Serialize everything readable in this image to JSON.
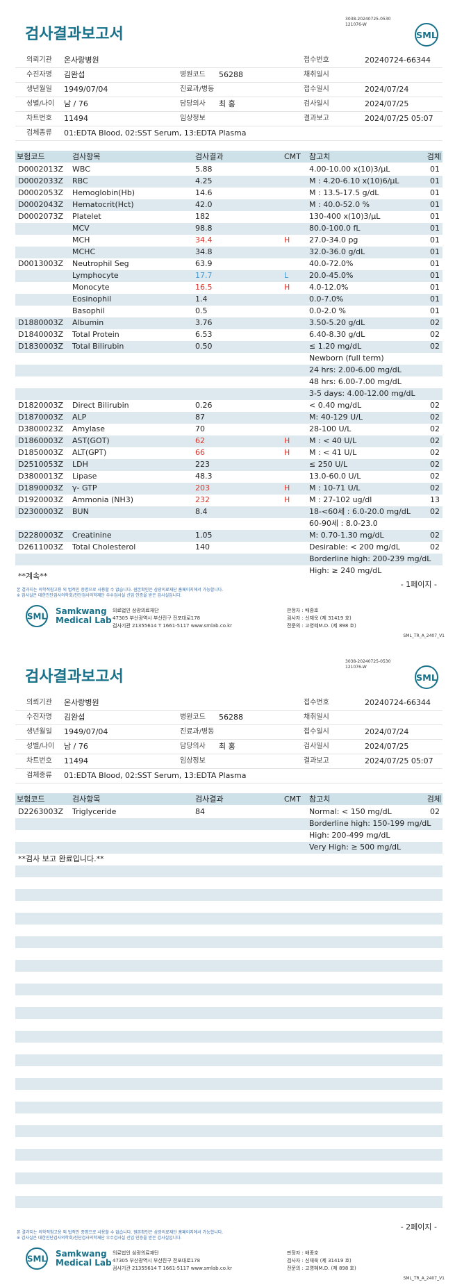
{
  "pages": [
    {
      "header": {
        "codes": [
          "3038-20240725-0530",
          "121076-W"
        ],
        "logo": "SML",
        "title": "검사결과보고서"
      },
      "info": [
        [
          {
            "label": "의뢰기관",
            "value": "온사랑병원"
          },
          null,
          {
            "label": "접수번호",
            "value": "20240724-66344"
          }
        ],
        [
          {
            "label": "수진자명",
            "value": "김완섭"
          },
          {
            "label": "병원코드",
            "value": "56288"
          },
          {
            "label": "채취일시"
          }
        ],
        [
          {
            "label": "생년월일",
            "value": "1949/07/04"
          },
          {
            "label": "진료과/병동"
          },
          {
            "label": "접수일시",
            "value": "2024/07/24"
          }
        ],
        [
          {
            "label": "성별/나이",
            "value": "남 / 76"
          },
          {
            "label": "담당의사",
            "value": "최 홍"
          },
          {
            "label": "검사일시",
            "value": "2024/07/25"
          }
        ],
        [
          {
            "label": "차트번호",
            "value": "11494"
          },
          {
            "label": "임상정보"
          },
          {
            "label": "결과보고",
            "value": "2024/07/25 05:07"
          }
        ],
        [
          {
            "label": "검체종류",
            "value": "01:EDTA Blood, 02:SST Serum, 13:EDTA Plasma"
          }
        ]
      ],
      "table": {
        "columns": [
          "보험코드",
          "검사항목",
          "검사결과",
          "CMT",
          "참고치",
          "검체"
        ],
        "rows": [
          {
            "code": "D0002013Z",
            "item": "WBC",
            "result": "5.88",
            "ref": "4.00-10.00 x(10)3/μL",
            "spec": "01"
          },
          {
            "code": "D0002033Z",
            "item": "RBC",
            "result": "4.25",
            "ref": "M : 4.20-6.10 x(10)6/μL",
            "spec": "01"
          },
          {
            "code": "D0002053Z",
            "item": "Hemoglobin(Hb)",
            "result": "14.6",
            "ref": "M : 13.5-17.5 g/dL",
            "spec": "01"
          },
          {
            "code": "D0002043Z",
            "item": "Hematocrit(Hct)",
            "result": "42.0",
            "ref": "M : 40.0-52.0 %",
            "spec": "01"
          },
          {
            "code": "D0002073Z",
            "item": "Platelet",
            "result": "182",
            "ref": "130-400 x(10)3/μL",
            "spec": "01"
          },
          {
            "item": "MCV",
            "result": "98.8",
            "ref": "80.0-100.0 fL",
            "spec": "01"
          },
          {
            "item": "MCH",
            "result": "34.4",
            "cmt": "H",
            "ref": "27.0-34.0 pg",
            "spec": "01"
          },
          {
            "item": "MCHC",
            "result": "34.8",
            "ref": "32.0-36.0 g/dL",
            "spec": "01"
          },
          {
            "code": "D0013003Z",
            "item": "Neutrophil Seg",
            "result": "63.9",
            "ref": "40.0-72.0%",
            "spec": "01"
          },
          {
            "item": "Lymphocyte",
            "result": "17.7",
            "cmt": "L",
            "ref": "20.0-45.0%",
            "spec": "01"
          },
          {
            "item": "Monocyte",
            "result": "16.5",
            "cmt": "H",
            "ref": "4.0-12.0%",
            "spec": "01"
          },
          {
            "item": "Eosinophil",
            "result": "1.4",
            "ref": "0.0-7.0%",
            "spec": "01"
          },
          {
            "item": "Basophil",
            "result": "0.5",
            "ref": "0.0-2.0 %",
            "spec": "01"
          },
          {
            "code": "D1880003Z",
            "item": "Albumin",
            "result": "3.76",
            "ref": "3.50-5.20 g/dL",
            "spec": "02"
          },
          {
            "code": "D1840003Z",
            "item": "Total Protein",
            "result": "6.53",
            "ref": "6.40-8.30 g/dL",
            "spec": "02"
          },
          {
            "code": "D1830003Z",
            "item": "Total Bilirubin",
            "result": "0.50",
            "ref": "≤ 1.20 mg/dL",
            "spec": "02"
          },
          {
            "ref": "Newborn (full term)"
          },
          {
            "ref": "24 hrs: 2.00-6.00 mg/dL"
          },
          {
            "ref": "48 hrs: 6.00-7.00 mg/dL"
          },
          {
            "ref": "3-5 days: 4.00-12.00 mg/dL"
          },
          {
            "code": "D1820003Z",
            "item": "Direct Bilirubin",
            "result": "0.26",
            "ref": "< 0.40 mg/dL",
            "spec": "02"
          },
          {
            "code": "D1870003Z",
            "item": "ALP",
            "result": "87",
            "ref": "M: 40-129 U/L",
            "spec": "02"
          },
          {
            "code": "D3800023Z",
            "item": "Amylase",
            "result": "70",
            "ref": "28-100 U/L",
            "spec": "02"
          },
          {
            "code": "D1860003Z",
            "item": "AST(GOT)",
            "result": "62",
            "cmt": "H",
            "ref": "M : < 40 U/L",
            "spec": "02"
          },
          {
            "code": "D1850003Z",
            "item": "ALT(GPT)",
            "result": "66",
            "cmt": "H",
            "ref": "M : < 41 U/L",
            "spec": "02"
          },
          {
            "code": "D2510053Z",
            "item": "LDH",
            "result": "223",
            "ref": "≤ 250 U/L",
            "spec": "02"
          },
          {
            "code": "D3800013Z",
            "item": "Lipase",
            "result": "48.3",
            "ref": "13.0-60.0 U/L",
            "spec": "02"
          },
          {
            "code": "D1890003Z",
            "item": "γ- GTP",
            "result": "203",
            "cmt": "H",
            "ref": "M : 10-71 U/L",
            "spec": "02"
          },
          {
            "code": "D1920003Z",
            "item": "Ammonia (NH3)",
            "result": "232",
            "cmt": "H",
            "ref": "M : 27-102 ug/dl",
            "spec": "13"
          },
          {
            "code": "D2300003Z",
            "item": "BUN",
            "result": "8.4",
            "ref": "18-<60세 : 6.0-20.0 mg/dL",
            "spec": "02"
          },
          {
            "ref": "60-90세 : 8.0-23.0"
          },
          {
            "code": "D2280003Z",
            "item": "Creatinine",
            "result": "1.05",
            "ref": "M: 0.70-1.30 mg/dL",
            "spec": "02"
          },
          {
            "code": "D2611003Z",
            "item": "Total Cholesterol",
            "result": "140",
            "ref": "Desirable: < 200 mg/dL",
            "spec": "02"
          },
          {
            "ref": "Borderline high: 200-239 mg/dL"
          },
          {
            "ref": "High: ≥ 240 mg/dL"
          }
        ]
      },
      "note": "**계속**",
      "page_number": "- 1페이지 -",
      "disclaimers": [
        "본 결과지는 의학적참고용 외 법적인 증명으로 사용할 수 없습니다. 원본확인은 삼광의료재단 홈페이지에서 가능합니다.",
        "※ 검사실은 대한진단검사의학회/진단검사의학재단 우수검사실 신임 인증을 받은 검사실입니다."
      ],
      "footer": {
        "logo": "SML",
        "logo_lines": [
          "Samkwang",
          "Medical Lab"
        ],
        "lab": [
          "의료법인 삼광의료재단",
          "47305 부산광역시 부산진구 전포대로178",
          "검사기관 21355614 T 1661-5117 www.smlab.co.kr"
        ],
        "staff": [
          "판정자 : 배종호",
          "검사자 : 신재욱 (제 31419 호)",
          "전문의 : 고영혜M.D. (제 898 호)"
        ],
        "form_code": "SML_TR_A_2407_V1"
      }
    },
    {
      "header": {
        "codes": [
          "3038-20240725-0530",
          "121076-W"
        ],
        "logo": "SML",
        "title": "검사결과보고서"
      },
      "info": [
        [
          {
            "label": "의뢰기관",
            "value": "온사랑병원"
          },
          null,
          {
            "label": "접수번호",
            "value": "20240724-66344"
          }
        ],
        [
          {
            "label": "수진자명",
            "value": "김완섭"
          },
          {
            "label": "병원코드",
            "value": "56288"
          },
          {
            "label": "채취일시"
          }
        ],
        [
          {
            "label": "생년월일",
            "value": "1949/07/04"
          },
          {
            "label": "진료과/병동"
          },
          {
            "label": "접수일시",
            "value": "2024/07/24"
          }
        ],
        [
          {
            "label": "성별/나이",
            "value": "남 / 76"
          },
          {
            "label": "담당의사",
            "value": "최 홍"
          },
          {
            "label": "검사일시",
            "value": "2024/07/25"
          }
        ],
        [
          {
            "label": "차트번호",
            "value": "11494"
          },
          {
            "label": "임상정보"
          },
          {
            "label": "결과보고",
            "value": "2024/07/25 05:07"
          }
        ],
        [
          {
            "label": "검체종류",
            "value": "01:EDTA Blood, 02:SST Serum, 13:EDTA Plasma"
          }
        ]
      ],
      "table": {
        "columns": [
          "보험코드",
          "검사항목",
          "검사결과",
          "CMT",
          "참고치",
          "검체"
        ],
        "rows": [
          {
            "code": "D2263003Z",
            "item": "Triglyceride",
            "result": "84",
            "ref": "Normal: < 150 mg/dL",
            "spec": "02"
          },
          {
            "ref": "Borderline high: 150-199 mg/dL"
          },
          {
            "ref": "High: 200-499 mg/dL"
          },
          {
            "ref": "Very High: ≥ 500 mg/dL"
          }
        ]
      },
      "note": "**검사 보고 완료입니다.**",
      "page_number": "- 2페이지 -",
      "disclaimers": [
        "본 결과지는 의학적참고용 외 법적인 증명으로 사용할 수 없습니다. 원본확인은 삼광의료재단 홈페이지에서 가능합니다.",
        "※ 검사실은 대한진단검사의학회/진단검사의학재단 우수검사실 신임 인증을 받은 검사실입니다."
      ],
      "footer": {
        "logo": "SML",
        "logo_lines": [
          "Samkwang",
          "Medical Lab"
        ],
        "lab": [
          "의료법인 삼광의료재단",
          "47305 부산광역시 부산진구 전포대로178",
          "검사기관 21355614 T 1661-5117 www.smlab.co.kr"
        ],
        "staff": [
          "판정자 : 배종호",
          "검사자 : 신재욱 (제 31419 호)",
          "전문의 : 고영혜M.D. (제 898 호)"
        ],
        "form_code": "SML_TR_A_2407_V1"
      }
    }
  ]
}
